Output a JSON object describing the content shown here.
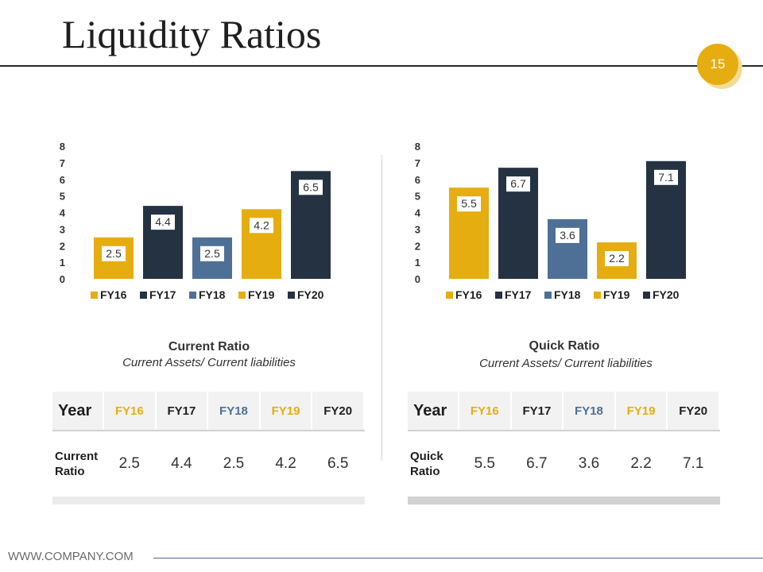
{
  "header": {
    "title": "Liquidity Ratios",
    "page_number": "15"
  },
  "colors": {
    "gold": "#e6ad10",
    "navy": "#243242",
    "steel": "#4e7096",
    "text": "#1f1f1f"
  },
  "chart_data": [
    {
      "type": "bar",
      "categories": [
        "FY16",
        "FY17",
        "FY18",
        "FY19",
        "FY20"
      ],
      "values": [
        2.5,
        4.4,
        2.5,
        4.2,
        6.5
      ],
      "value_labels": [
        "2.5",
        "4.4",
        "2.5",
        "4.2",
        "6.5"
      ],
      "bar_colors": [
        "#e6ad10",
        "#243242",
        "#4e7096",
        "#e6ad10",
        "#243242"
      ],
      "y_ticks": [
        "0",
        "1",
        "2",
        "3",
        "4",
        "5",
        "6",
        "7",
        "8"
      ],
      "ylim": [
        0,
        8
      ],
      "legend_position": "bottom",
      "title": "Current Ratio",
      "subtitle": "Current Assets/ Current liabilities"
    },
    {
      "type": "bar",
      "categories": [
        "FY16",
        "FY17",
        "FY18",
        "FY19",
        "FY20"
      ],
      "values": [
        5.5,
        6.7,
        3.6,
        2.2,
        7.1
      ],
      "value_labels": [
        "5.5",
        "6.7",
        "3.6",
        "2.2",
        "7.1"
      ],
      "bar_colors": [
        "#e6ad10",
        "#243242",
        "#4e7096",
        "#e6ad10",
        "#243242"
      ],
      "y_ticks": [
        "0",
        "1",
        "2",
        "3",
        "4",
        "5",
        "6",
        "7",
        "8"
      ],
      "ylim": [
        0,
        8
      ],
      "legend_position": "bottom",
      "title": "Quick Ratio",
      "subtitle": "Current Assets/ Current liabilities"
    }
  ],
  "tables": {
    "current": {
      "header": [
        "Year",
        "FY16",
        "FY17",
        "FY18",
        "FY19",
        "FY20"
      ],
      "row_label": "Current Ratio",
      "values": [
        "2.5",
        "4.4",
        "2.5",
        "4.2",
        "6.5"
      ]
    },
    "quick": {
      "header": [
        "Year",
        "FY16",
        "FY17",
        "FY18",
        "FY19",
        "FY20"
      ],
      "row_label": "Quick Ratio",
      "values": [
        "5.5",
        "6.7",
        "3.6",
        "2.2",
        "7.1"
      ]
    }
  },
  "footer": {
    "url": "WWW.COMPANY.COM"
  }
}
